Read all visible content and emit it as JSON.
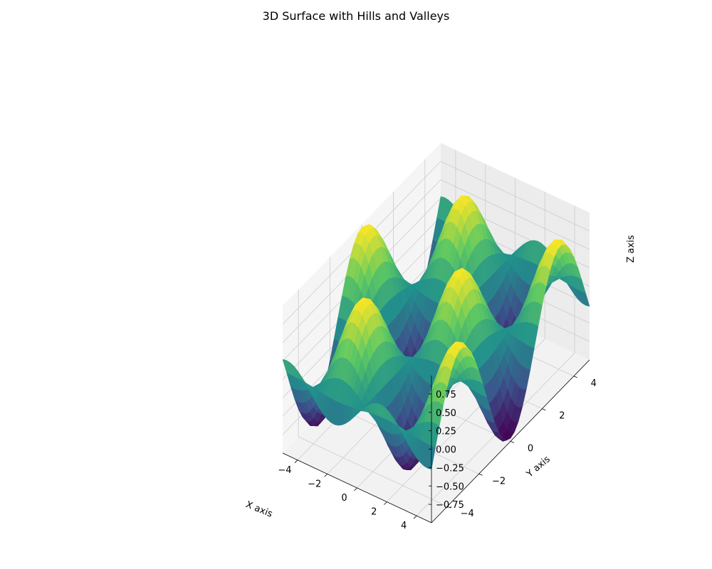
{
  "chart_data": {
    "type": "surface3d",
    "title": "3D Surface with Hills and Valleys",
    "xlabel": "X axis",
    "ylabel": "Y axis",
    "zlabel": "Z axis",
    "function": "z = sin(x) * cos(y)",
    "x_range": [
      -5,
      5
    ],
    "y_range": [
      -5,
      5
    ],
    "zlim": [
      -1,
      1
    ],
    "xticks": [
      -4,
      -2,
      0,
      2,
      4
    ],
    "yticks": [
      -4,
      -2,
      0,
      2,
      4
    ],
    "zticks": [
      -0.75,
      -0.5,
      -0.25,
      0.0,
      0.25,
      0.5,
      0.75
    ],
    "xtick_labels": [
      "−4",
      "−2",
      "0",
      "2",
      "4"
    ],
    "ytick_labels": [
      "−4",
      "−2",
      "0",
      "2",
      "4"
    ],
    "ztick_labels": [
      "−0.75",
      "−0.50",
      "−0.25",
      "0.00",
      "0.25",
      "0.50",
      "0.75"
    ],
    "colormap": "viridis",
    "colormap_stops": [
      "#440154",
      "#3b528b",
      "#21918c",
      "#5ec962",
      "#fde725"
    ],
    "pane_color": "#f2f2f2",
    "grid": true
  }
}
